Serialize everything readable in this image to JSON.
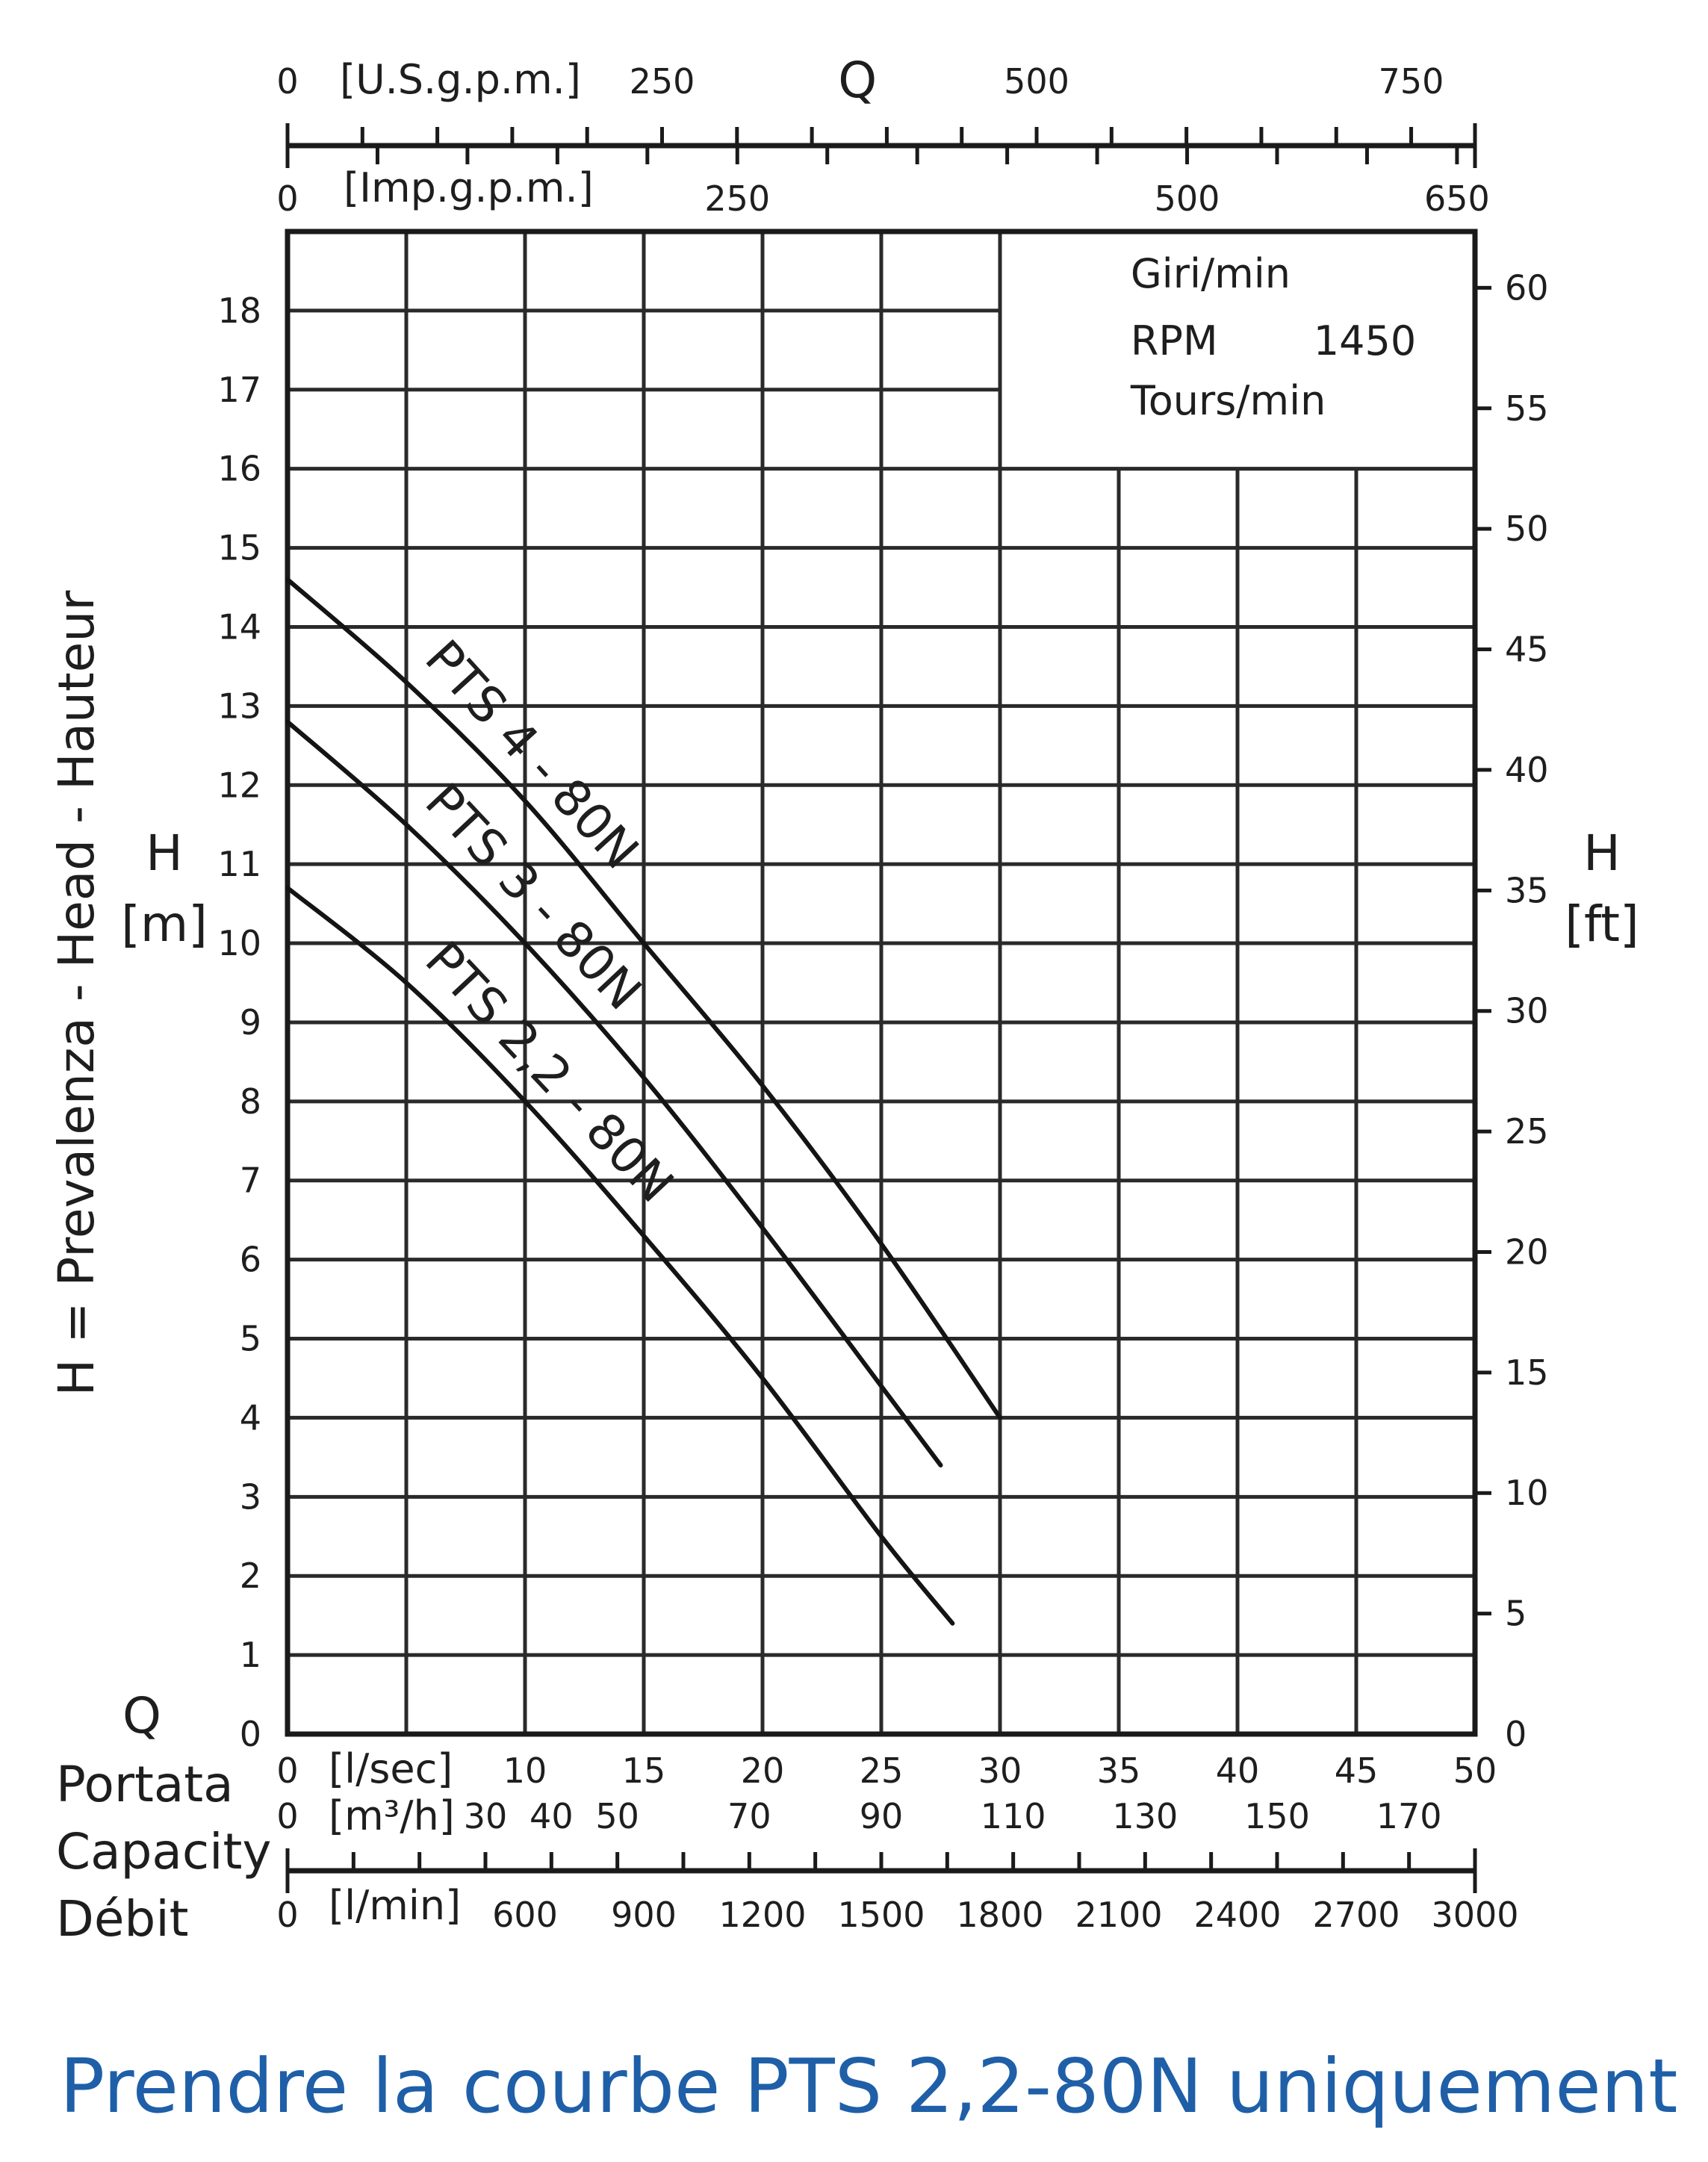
{
  "chart_data": {
    "type": "line",
    "title": "",
    "xlabel": "Q",
    "xlabel_lines": [
      "Portata",
      "Capacity",
      "Débit"
    ],
    "ylabel": "H = Prevalenza - Head - Hauteur",
    "ylabel_left_symbol": "H",
    "ylabel_left_unit": "[m]",
    "ylabel_right_symbol": "H",
    "ylabel_right_unit": "[ft]",
    "xlim": [
      0,
      50
    ],
    "ylim": [
      0,
      19
    ],
    "x_unit": "[l/sec]",
    "x_ticks": [
      "0",
      "10",
      "15",
      "20",
      "25",
      "30",
      "35",
      "40",
      "45",
      "50"
    ],
    "x_tick_values": [
      0,
      10,
      15,
      20,
      25,
      30,
      35,
      40,
      45,
      50
    ],
    "y_ticks": [
      "0",
      "1",
      "2",
      "3",
      "4",
      "5",
      "6",
      "7",
      "8",
      "9",
      "10",
      "11",
      "12",
      "13",
      "14",
      "15",
      "16",
      "17",
      "18"
    ],
    "y_right_ticks": [
      "0",
      "5",
      "10",
      "15",
      "20",
      "25",
      "30",
      "35",
      "40",
      "45",
      "50",
      "55",
      "60"
    ],
    "top_axes": [
      {
        "unit": "[U.S.g.p.m.]",
        "max": 792.6,
        "ticks": [
          "0",
          "250",
          "500",
          "750"
        ],
        "tick_values": [
          0,
          250,
          500,
          750
        ]
      },
      {
        "unit": "[Imp.g.p.m.]",
        "max": 660,
        "ticks": [
          "0",
          "250",
          "500",
          "650"
        ],
        "tick_values": [
          0,
          250,
          500,
          650
        ]
      }
    ],
    "top_axis_symbol": "Q",
    "bottom_axes": [
      {
        "unit": "[m³/h]",
        "max": 180,
        "ticks": [
          "0",
          "30",
          "40",
          "50",
          "70",
          "90",
          "110",
          "130",
          "150",
          "170"
        ],
        "tick_values": [
          0,
          30,
          40,
          50,
          70,
          90,
          110,
          130,
          150,
          170
        ]
      },
      {
        "unit": "[l/min]",
        "max": 3000,
        "ticks": [
          "0",
          "600",
          "900",
          "1200",
          "1500",
          "1800",
          "2100",
          "2400",
          "2700",
          "3000"
        ],
        "tick_values": [
          0,
          600,
          900,
          1200,
          1500,
          1800,
          2100,
          2400,
          2700,
          3000
        ]
      }
    ],
    "legend_box": {
      "line1": "Giri/min",
      "line2": "RPM",
      "rpm_value": "1450",
      "line3": "Tours/min"
    },
    "series": [
      {
        "name": "PTS 4 - 80N",
        "x": [
          0,
          5,
          10,
          15,
          20,
          25,
          30
        ],
        "y": [
          14.6,
          13.3,
          11.8,
          10.0,
          8.2,
          6.2,
          4.0
        ]
      },
      {
        "name": "PTS 3 - 80N",
        "x": [
          0,
          5,
          10,
          15,
          20,
          25,
          27.5
        ],
        "y": [
          12.8,
          11.5,
          10.0,
          8.3,
          6.4,
          4.4,
          3.4
        ]
      },
      {
        "name": "PTS 2,2 - 80N",
        "x": [
          0,
          5,
          10,
          15,
          20,
          25,
          28
        ],
        "y": [
          10.7,
          9.5,
          8.0,
          6.3,
          4.5,
          2.5,
          1.4
        ]
      }
    ],
    "grid": true
  },
  "caption": "Prendre la courbe PTS 2,2-80N  uniquement"
}
